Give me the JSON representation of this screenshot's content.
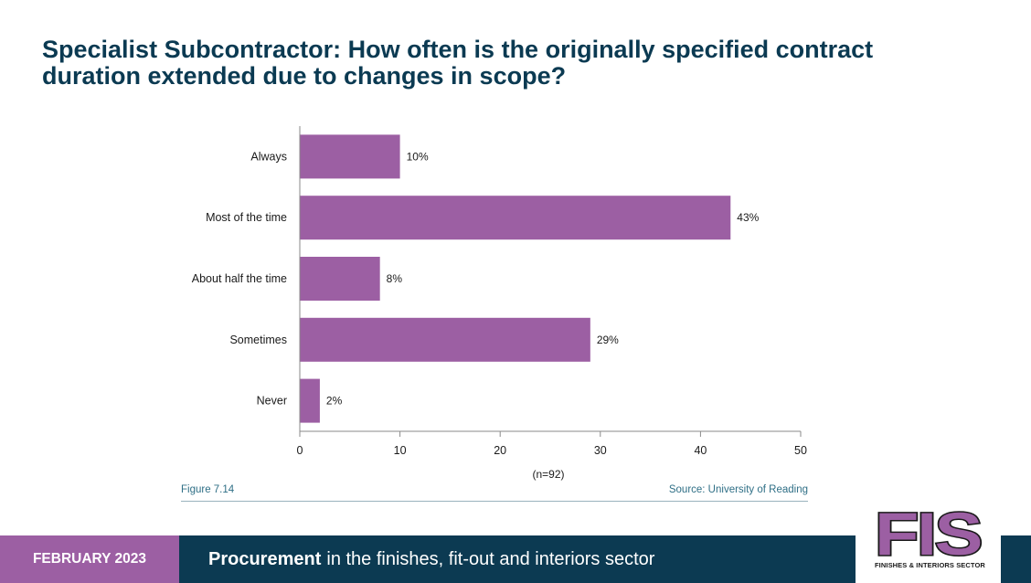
{
  "title_line1": "Specialist Subcontractor:  How often is the originally specified contract",
  "title_line2": "duration extended due to changes in scope?",
  "figure_label": "Figure 7.14",
  "source": "Source: University of Reading",
  "footer": {
    "date": "FEBRUARY 2023",
    "title_bold": "Procurement",
    "title_rest": "in the finishes, fit-out and interiors sector"
  },
  "logo": {
    "letters": "FIS",
    "subtitle": "FINISHES & INTERIORS SECTOR"
  },
  "colors": {
    "bar": "#9c5fa3",
    "title": "#0b3a52",
    "footer_navy": "#0c3a52",
    "footer_purple": "#9c5fa3"
  },
  "chart_data": {
    "type": "bar",
    "orientation": "horizontal",
    "categories": [
      "Always",
      "Most of the time",
      "About half the time",
      "Sometimes",
      "Never"
    ],
    "values": [
      10,
      43,
      8,
      29,
      2
    ],
    "value_labels": [
      "10%",
      "43%",
      "8%",
      "29%",
      "2%"
    ],
    "xlim": [
      0,
      50
    ],
    "xticks": [
      0,
      10,
      20,
      30,
      40,
      50
    ],
    "xticklabels": [
      "0",
      "10",
      "20",
      "30",
      "40",
      "50"
    ],
    "note": "(n=92)",
    "grid": false
  }
}
